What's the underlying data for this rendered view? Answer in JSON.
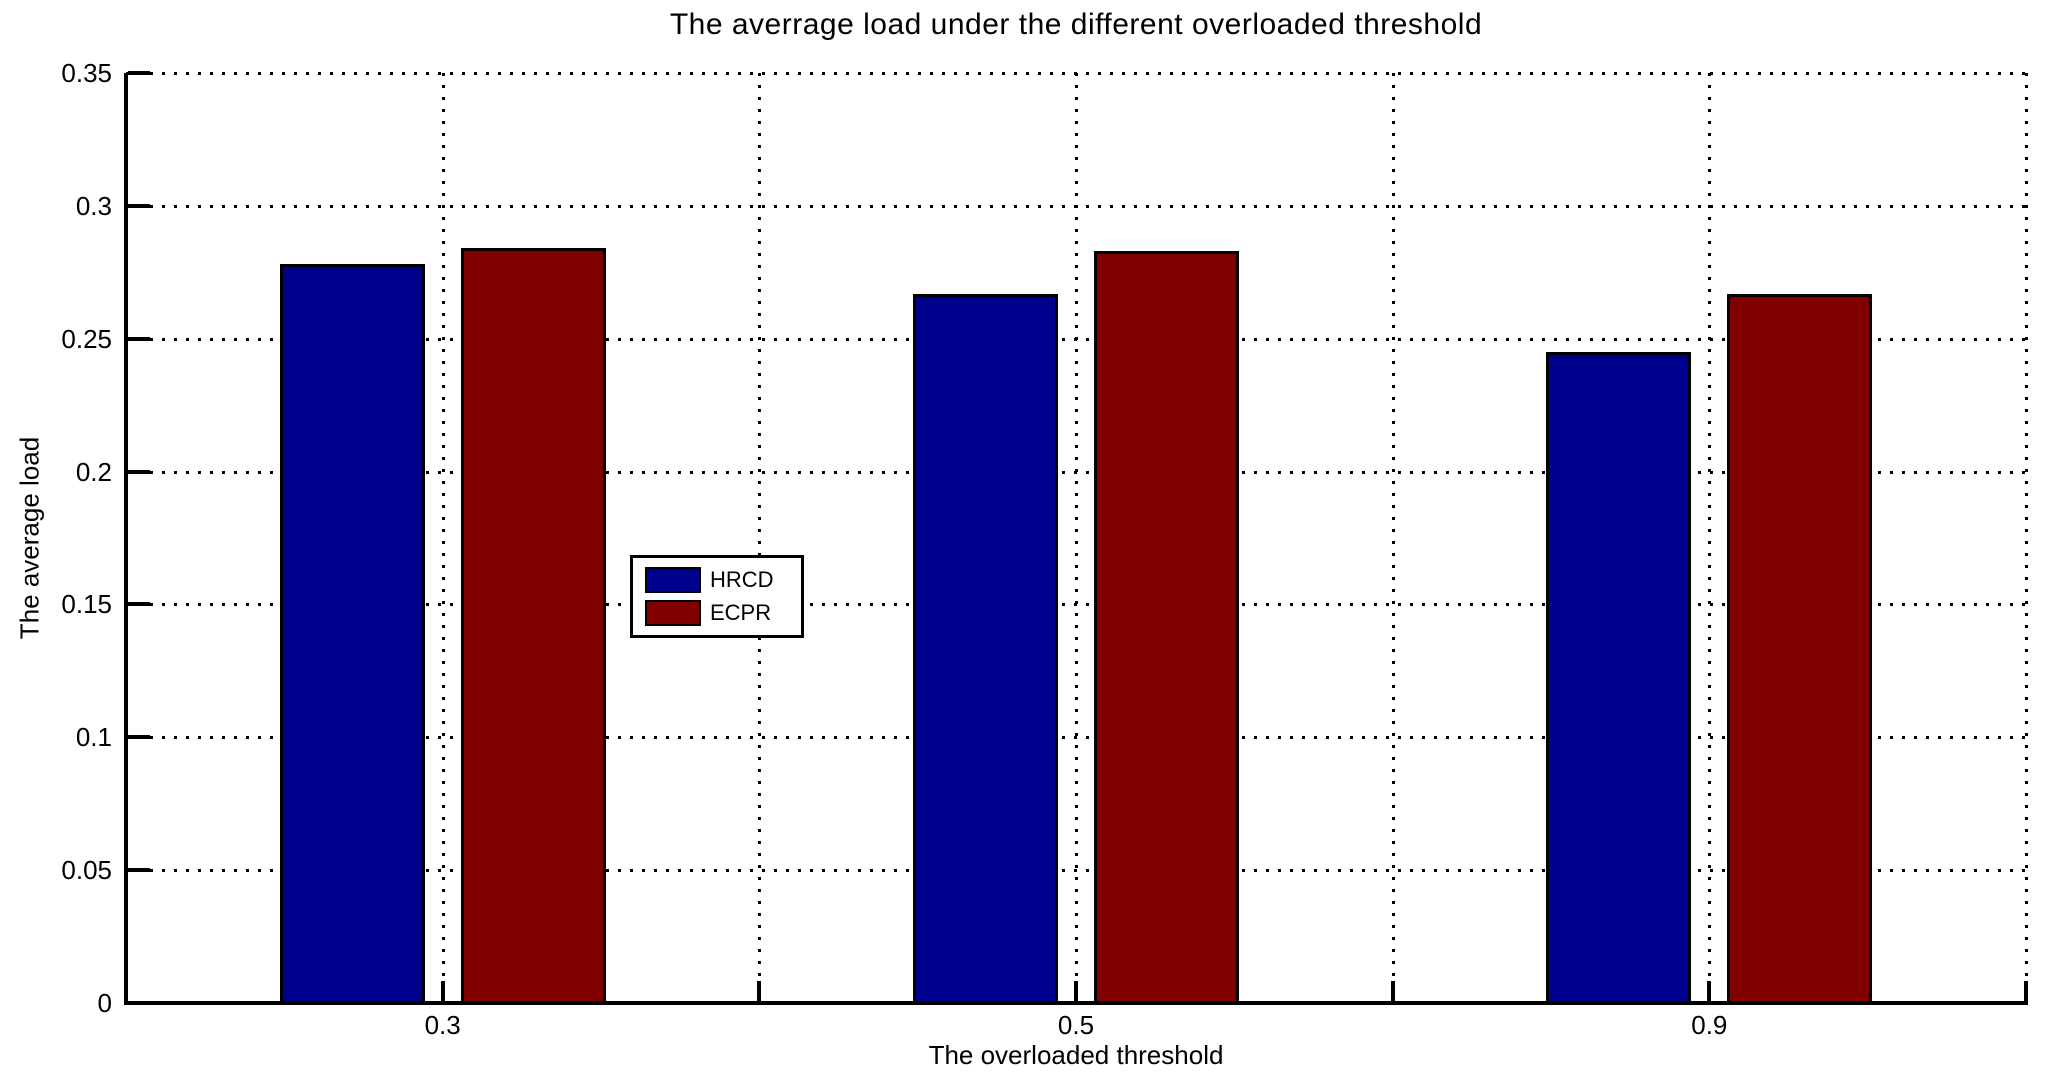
{
  "chart_data": {
    "type": "bar",
    "title": "The averrage load under the different overloaded threshold",
    "xlabel": "The overloaded threshold",
    "ylabel": "The average load",
    "categories": [
      "0.3",
      "0.5",
      "0.9"
    ],
    "series": [
      {
        "name": "HRCD",
        "color": "#00008F",
        "values": [
          0.278,
          0.267,
          0.245
        ]
      },
      {
        "name": "ECPR",
        "color": "#800000",
        "values": [
          0.284,
          0.283,
          0.267
        ]
      }
    ],
    "ylim": [
      0,
      0.35
    ],
    "yticks": [
      0,
      0.05,
      0.1,
      0.15,
      0.2,
      0.25,
      0.3,
      0.35
    ],
    "ytick_labels": [
      "0",
      "0.05",
      "0.1",
      "0.15",
      "0.2",
      "0.25",
      "0.3",
      "0.35"
    ],
    "grid": "dotted",
    "minor_x_gridlines_between_groups": true,
    "legend_position": "center",
    "bar_edge_color": "#000000",
    "background_color": "#ffffff"
  }
}
